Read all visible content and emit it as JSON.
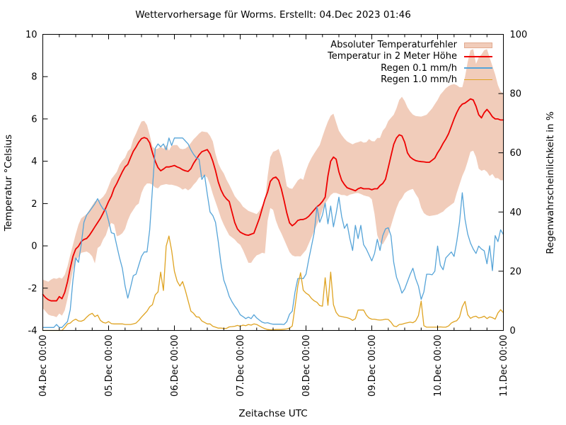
{
  "window": {
    "title": "Wettervorhersage für Worms. Erstellt: 04.Dec 2023 01:46"
  },
  "chart_data": {
    "type": "line",
    "title": "Wettervorhersage für Worms. Erstellt: 04.Dec 2023 01:46",
    "x_axis": {
      "label": "Zeitachse UTC",
      "unit": "hours since 04.Dec 2023 00:00 UTC",
      "start_hour": 0,
      "end_hour": 168,
      "step_hours": 1,
      "major_tick_every_hours": 24,
      "minor_tick_every_hours": 6,
      "tick_labels": [
        "04.Dec 00:00",
        "05.Dec 00:00",
        "06.Dec 00:00",
        "07.Dec 00:00",
        "08.Dec 00:00",
        "09.Dec 00:00",
        "10.Dec 00:00",
        "11.Dec 00:00"
      ]
    },
    "y_left_axis": {
      "label": "Temperatur °Celsius",
      "min": -4,
      "max": 10,
      "tick_step": 2
    },
    "y_right_axis": {
      "label": "Regenwahrscheinlichkeit in %",
      "min": 0,
      "max": 100,
      "tick_step": 20
    },
    "grid": false,
    "legend_position": "top-right-inside",
    "series": [
      {
        "name": "Absoluter Temperaturfehler",
        "type": "band",
        "axis": "left",
        "color": "#f1ccba",
        "border_color": "#e2ab90",
        "upper": [
          -1.6,
          -1.65,
          -1.7,
          -1.6,
          -1.53,
          -1.56,
          -1.5,
          -1.55,
          -1.37,
          -0.97,
          -0.43,
          0.05,
          0.55,
          1,
          1.3,
          1.4,
          1.5,
          1.7,
          1.9,
          2.1,
          2.15,
          2.2,
          2.32,
          2.5,
          2.82,
          3.16,
          3.33,
          3.5,
          3.83,
          4.03,
          4.17,
          4.47,
          4.6,
          5.04,
          5.31,
          5.61,
          5.88,
          5.91,
          5.71,
          5.24,
          4.7,
          4.57,
          4.6,
          4.7,
          4.58,
          4.77,
          4.5,
          4.73,
          4.77,
          4.77,
          4.6,
          4.57,
          4.6,
          4.7,
          4.87,
          5.04,
          5.17,
          5.31,
          5.41,
          5.39,
          5.37,
          5.2,
          4.94,
          4.35,
          3.9,
          3.63,
          3.43,
          3.13,
          2.89,
          2.62,
          2.35,
          2.19,
          2.05,
          1.85,
          1.75,
          1.65,
          1.6,
          1.55,
          1.5,
          1.65,
          1.9,
          2.1,
          3.3,
          4.2,
          4.45,
          4.5,
          4.58,
          4.2,
          3.56,
          2.82,
          2.72,
          2.7,
          2.89,
          3.09,
          3.19,
          3.12,
          3.56,
          3.9,
          4.16,
          4.37,
          4.57,
          4.77,
          5.17,
          5.54,
          5.88,
          6.15,
          6.25,
          5.84,
          5.44,
          5.24,
          5.07,
          4.94,
          4.87,
          4.8,
          4.87,
          4.9,
          4.95,
          4.88,
          4.9,
          5.05,
          4.95,
          4.94,
          5.1,
          5.1,
          5.44,
          5.6,
          5.9,
          6.05,
          6.2,
          6.5,
          6.9,
          7.05,
          6.85,
          6.55,
          6.35,
          6.21,
          6.14,
          6.12,
          6.11,
          6.15,
          6.2,
          6.35,
          6.5,
          6.7,
          6.9,
          7.15,
          7.3,
          7.45,
          7.55,
          7.62,
          7.65,
          7.6,
          7.5,
          7.5,
          8,
          8.7,
          9.25,
          9.3,
          8.6,
          8.9,
          9.05,
          9.25,
          9.3,
          8.9,
          8.5,
          8.1,
          7.6,
          7.3,
          7.2
        ],
        "lower": [
          -2.95,
          -3.1,
          -3.25,
          -3.3,
          -3.32,
          -3.37,
          -3.2,
          -3.3,
          -3.05,
          -2.5,
          -1.85,
          -1.15,
          -0.7,
          -0.53,
          -0.33,
          -0.3,
          -0.27,
          -0.35,
          -0.5,
          -0.83,
          -0.1,
          0,
          0.3,
          0.5,
          0.9,
          1.08,
          1.01,
          0.45,
          0.5,
          0.6,
          0.8,
          1.2,
          1.5,
          1.7,
          1.9,
          2,
          2.5,
          2.8,
          2.95,
          2.95,
          2.89,
          2.76,
          2.72,
          2.86,
          2.89,
          2.92,
          2.89,
          2.89,
          2.86,
          2.82,
          2.76,
          2.66,
          2.72,
          2.62,
          2.72,
          2.89,
          3.03,
          3.23,
          3.26,
          3.33,
          3.23,
          2.89,
          2.45,
          2.08,
          1.7,
          1.3,
          1,
          0.75,
          0.5,
          0.4,
          0.3,
          0.15,
          0.05,
          -0.2,
          -0.5,
          -0.8,
          -0.8,
          -0.6,
          -0.45,
          -0.4,
          -0.33,
          -0.36,
          1.2,
          1.79,
          1.7,
          1.2,
          0.85,
          0.6,
          0.3,
          0,
          -0.3,
          -0.45,
          -0.5,
          -0.49,
          -0.5,
          -0.35,
          -0.2,
          0.1,
          0.4,
          0.7,
          1,
          1.3,
          1.7,
          2,
          2.2,
          2.4,
          2.5,
          2.5,
          2.45,
          2.4,
          2.4,
          2.35,
          2.42,
          2.45,
          2.49,
          2.5,
          2.45,
          2.39,
          2.35,
          2.32,
          2.2,
          1.5,
          0.5,
          0.17,
          0.07,
          0.3,
          0.54,
          0.94,
          1.38,
          1.78,
          2.1,
          2.25,
          2.49,
          2.59,
          2.65,
          2.69,
          2.45,
          2.25,
          1.8,
          1.55,
          1.45,
          1.41,
          1.43,
          1.45,
          1.48,
          1.55,
          1.62,
          1.75,
          1.85,
          1.95,
          2.05,
          2.5,
          2.9,
          3.3,
          3.6,
          4,
          4.45,
          4.5,
          4.2,
          3.65,
          3.55,
          3.6,
          3.5,
          3.3,
          3.4,
          3.2,
          3.2,
          3.1,
          3.1
        ]
      },
      {
        "name": "Temperatur in 2 Meter Höhe",
        "type": "line",
        "axis": "left",
        "color": "#ee0000",
        "line_width": 1.8,
        "values": [
          -2.3,
          -2.45,
          -2.55,
          -2.6,
          -2.6,
          -2.6,
          -2.4,
          -2.5,
          -2.2,
          -1.7,
          -1.05,
          -0.5,
          -0.15,
          -0.02,
          0.2,
          0.3,
          0.35,
          0.5,
          0.7,
          0.9,
          1.1,
          1.3,
          1.55,
          1.8,
          2.1,
          2.35,
          2.72,
          2.95,
          3.23,
          3.5,
          3.73,
          3.85,
          4.17,
          4.47,
          4.67,
          4.9,
          5.07,
          5.12,
          5.07,
          4.87,
          4.4,
          4,
          3.7,
          3.55,
          3.63,
          3.73,
          3.73,
          3.76,
          3.8,
          3.73,
          3.68,
          3.6,
          3.55,
          3.52,
          3.65,
          3.9,
          4.1,
          4.3,
          4.45,
          4.5,
          4.55,
          4.35,
          4,
          3.56,
          3.02,
          2.64,
          2.38,
          2.22,
          2.1,
          1.6,
          1.1,
          0.8,
          0.65,
          0.58,
          0.52,
          0.5,
          0.55,
          0.6,
          0.95,
          1.3,
          1.75,
          2.2,
          2.55,
          3.05,
          3.2,
          3.25,
          3.1,
          2.7,
          2.15,
          1.55,
          1.08,
          0.95,
          1.05,
          1.2,
          1.24,
          1.25,
          1.3,
          1.4,
          1.55,
          1.7,
          1.85,
          1.95,
          2.1,
          2.3,
          3.3,
          4,
          4.2,
          4.1,
          3.5,
          3.1,
          2.9,
          2.75,
          2.7,
          2.65,
          2.6,
          2.7,
          2.75,
          2.7,
          2.7,
          2.7,
          2.65,
          2.7,
          2.7,
          2.85,
          2.95,
          3.15,
          3.7,
          4.25,
          4.8,
          5.1,
          5.25,
          5.2,
          4.9,
          4.4,
          4.2,
          4.1,
          4.03,
          4,
          3.98,
          3.97,
          3.95,
          3.95,
          4.05,
          4.15,
          4.4,
          4.6,
          4.85,
          5.05,
          5.3,
          5.65,
          6,
          6.3,
          6.55,
          6.7,
          6.75,
          6.85,
          6.95,
          6.9,
          6.6,
          6.2,
          6.05,
          6.3,
          6.45,
          6.3,
          6.1,
          6,
          6,
          5.95,
          5.95
        ]
      },
      {
        "name": "Regen 0.1 mm/h",
        "type": "line",
        "axis": "right",
        "color": "#56a4d8",
        "line_width": 1.3,
        "values": [
          1,
          1,
          1,
          1,
          1,
          2,
          1,
          1,
          2,
          3,
          7,
          17,
          24.5,
          23,
          29,
          36.5,
          39,
          40.2,
          41.5,
          42.8,
          44.5,
          42.5,
          41,
          40.5,
          37,
          33,
          32.7,
          28.6,
          24.5,
          21,
          15,
          10.9,
          14.5,
          18.5,
          19,
          22,
          25,
          26.5,
          26.5,
          34,
          48,
          61.5,
          63,
          62,
          63,
          61,
          65,
          62.5,
          65,
          65,
          65,
          65,
          64,
          63,
          61,
          59.5,
          58.3,
          57.8,
          51,
          52.5,
          46,
          40,
          38.8,
          36.5,
          30,
          22.5,
          17,
          14.5,
          11.5,
          9.7,
          8.2,
          7,
          5.3,
          4.7,
          4,
          4.5,
          4,
          5.3,
          4.2,
          3.5,
          2.8,
          2.5,
          2.6,
          2.3,
          2.1,
          2.1,
          2.1,
          2.1,
          2,
          3,
          5.5,
          6.5,
          13,
          17.5,
          17.6,
          17.5,
          19,
          24,
          28.5,
          33,
          41.8,
          36.5,
          39,
          43,
          36,
          42,
          35,
          39.5,
          45,
          38.5,
          34.5,
          36,
          31,
          27,
          35.5,
          31,
          35.5,
          29,
          27.5,
          25.5,
          23.5,
          26,
          30.8,
          27,
          32,
          34.3,
          34.7,
          32,
          23,
          18,
          15.5,
          12.6,
          14,
          16.5,
          19,
          21,
          17.5,
          15,
          10.5,
          13,
          19,
          19,
          18.8,
          20,
          28.5,
          22,
          20.5,
          24.5,
          25.5,
          26.5,
          25,
          30,
          36.5,
          46.5,
          37.5,
          32.5,
          29.5,
          27.5,
          26,
          28.5,
          27.5,
          26.9,
          22.5,
          28.6,
          20.2,
          32,
          30,
          34,
          32.4
        ]
      },
      {
        "name": "Regen 1.0 mm/h",
        "type": "line",
        "axis": "right",
        "color": "#dfa321",
        "line_width": 1.3,
        "values": [
          0,
          0,
          0,
          0,
          0,
          0,
          0,
          0,
          1,
          2.2,
          2.5,
          3.3,
          3.8,
          3.2,
          3.1,
          3.5,
          4.5,
          5.3,
          5.8,
          4.7,
          5.2,
          3.4,
          2.7,
          2.5,
          3,
          2.3,
          2.2,
          2.2,
          2.2,
          2.2,
          2,
          2,
          2,
          2.2,
          2.5,
          3.4,
          4.5,
          5.5,
          6.5,
          8,
          8.7,
          12,
          13,
          19.7,
          13.5,
          28.5,
          31.9,
          27,
          20,
          16.6,
          15,
          16.5,
          13.5,
          10,
          6.5,
          5.8,
          4.6,
          4.5,
          3.2,
          2.7,
          2.2,
          2.2,
          1.4,
          1.1,
          0.8,
          0.8,
          0.7,
          0.7,
          1.2,
          1.3,
          1.4,
          1.7,
          1.4,
          1.8,
          1.6,
          2,
          1.8,
          2.2,
          2,
          1.5,
          1,
          0.6,
          0.3,
          0.2,
          0.2,
          0.3,
          0.3,
          0.3,
          0.4,
          0.5,
          0.8,
          1.5,
          8,
          15,
          19.5,
          13.6,
          12.6,
          12,
          10.8,
          10,
          9.5,
          8.4,
          8.2,
          17.8,
          8.5,
          19.7,
          8.7,
          6.1,
          4.9,
          4.7,
          4.5,
          4.3,
          4,
          3.4,
          4,
          6.9,
          6.9,
          6.9,
          5.2,
          4.2,
          3.8,
          3.8,
          3.6,
          3.5,
          3.6,
          3.8,
          3.7,
          2.8,
          1.5,
          1.3,
          2,
          2.1,
          2.4,
          2.6,
          2.8,
          2.6,
          3.2,
          5,
          9.9,
          1.6,
          1.1,
          1.1,
          1.1,
          1.1,
          1.1,
          1.2,
          1.1,
          1.1,
          1.5,
          2.5,
          3,
          3.3,
          4.5,
          8,
          9.8,
          5.3,
          4.1,
          4.6,
          4.8,
          4.2,
          4.4,
          4.8,
          4,
          4.6,
          4.3,
          3.8,
          5.9,
          7,
          6
        ]
      }
    ]
  }
}
